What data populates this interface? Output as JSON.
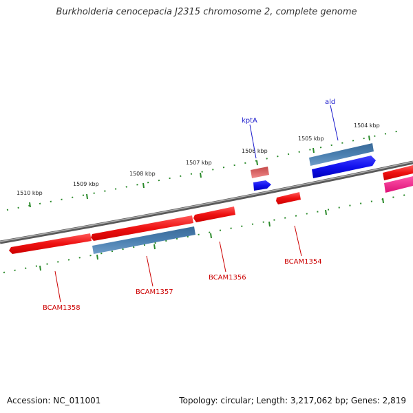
{
  "title": "Burkholderia cenocepacia J2315 chromosome 2, complete genome",
  "footer": {
    "accession": "Accession: NC_011001",
    "summary": "Topology: circular; Length: 3,217,062 bp; Genes: 2,819"
  },
  "colors": {
    "backbone": "#7a7a7a",
    "tick": "#2a8a2a",
    "red_gene": "#ee1111",
    "blue_gene": "#1111ee",
    "steel_gene": "#4a7fb0",
    "pink_gene": "#ee1188",
    "faded_red": "#d85a5a",
    "label_red": "#cc0000",
    "label_blue": "#1a1acc"
  },
  "ticks": [
    "1510 kbp",
    "1509 kbp",
    "1508 kbp",
    "1507 kbp",
    "1506 kbp",
    "1505 kbp",
    "1504 kbp"
  ],
  "gene_labels": {
    "kptA": "kptA",
    "ald": "ald",
    "bcam1354": "BCAM1354",
    "bcam1356": "BCAM1356",
    "bcam1357": "BCAM1357",
    "bcam1358": "BCAM1358"
  }
}
